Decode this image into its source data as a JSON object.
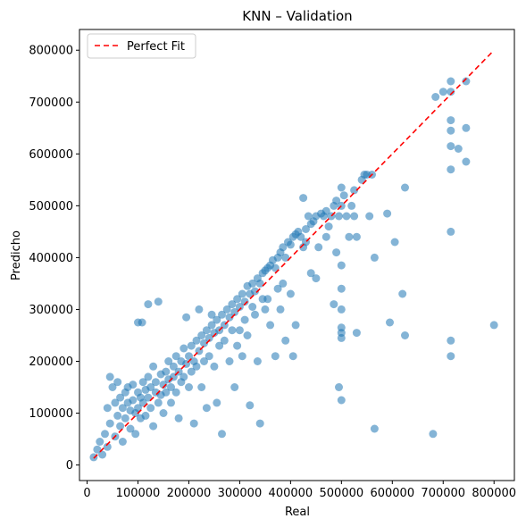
{
  "chart_data": {
    "type": "scatter",
    "title": "KNN – Validation",
    "xlabel": "Real",
    "ylabel": "Predicho",
    "xlim": [
      -15000,
      840000
    ],
    "ylim": [
      -30000,
      840000
    ],
    "x_ticks": [
      0,
      100000,
      200000,
      300000,
      400000,
      500000,
      600000,
      700000,
      800000
    ],
    "y_ticks": [
      0,
      100000,
      200000,
      300000,
      400000,
      500000,
      600000,
      700000,
      800000
    ],
    "grid": false,
    "legend": {
      "location": "top-left",
      "entries": [
        "Perfect Fit"
      ]
    },
    "colors": {
      "points": "#1f77b4",
      "reference_line": "#ff0000"
    },
    "reference_line": {
      "name": "Perfect Fit",
      "x": [
        13000,
        800000
      ],
      "y": [
        13000,
        800000
      ],
      "style": "dashed"
    },
    "series": [
      {
        "marker": "circle",
        "opacity": 0.55,
        "points": [
          [
            13000,
            15000
          ],
          [
            20000,
            30000
          ],
          [
            25000,
            45000
          ],
          [
            30000,
            20000
          ],
          [
            35000,
            60000
          ],
          [
            40000,
            35000
          ],
          [
            40000,
            110000
          ],
          [
            45000,
            80000
          ],
          [
            45000,
            170000
          ],
          [
            50000,
            150000
          ],
          [
            55000,
            55000
          ],
          [
            55000,
            120000
          ],
          [
            60000,
            95000
          ],
          [
            60000,
            160000
          ],
          [
            65000,
            75000
          ],
          [
            65000,
            130000
          ],
          [
            70000,
            110000
          ],
          [
            70000,
            45000
          ],
          [
            75000,
            140000
          ],
          [
            75000,
            90000
          ],
          [
            80000,
            150000
          ],
          [
            80000,
            120000
          ],
          [
            85000,
            70000
          ],
          [
            85000,
            105000
          ],
          [
            90000,
            125000
          ],
          [
            90000,
            155000
          ],
          [
            95000,
            100000
          ],
          [
            95000,
            60000
          ],
          [
            100000,
            140000
          ],
          [
            100000,
            110000
          ],
          [
            100000,
            275000
          ],
          [
            105000,
            130000
          ],
          [
            105000,
            90000
          ],
          [
            108000,
            275000
          ],
          [
            110000,
            160000
          ],
          [
            110000,
            120000
          ],
          [
            115000,
            95000
          ],
          [
            115000,
            145000
          ],
          [
            120000,
            130000
          ],
          [
            120000,
            170000
          ],
          [
            120000,
            310000
          ],
          [
            125000,
            110000
          ],
          [
            125000,
            150000
          ],
          [
            130000,
            190000
          ],
          [
            130000,
            75000
          ],
          [
            135000,
            140000
          ],
          [
            135000,
            160000
          ],
          [
            140000,
            315000
          ],
          [
            140000,
            120000
          ],
          [
            145000,
            175000
          ],
          [
            145000,
            135000
          ],
          [
            150000,
            155000
          ],
          [
            150000,
            100000
          ],
          [
            155000,
            180000
          ],
          [
            155000,
            140000
          ],
          [
            160000,
            165000
          ],
          [
            160000,
            200000
          ],
          [
            165000,
            150000
          ],
          [
            165000,
            120000
          ],
          [
            170000,
            190000
          ],
          [
            170000,
            170000
          ],
          [
            175000,
            210000
          ],
          [
            175000,
            140000
          ],
          [
            180000,
            180000
          ],
          [
            180000,
            90000
          ],
          [
            185000,
            200000
          ],
          [
            185000,
            160000
          ],
          [
            190000,
            225000
          ],
          [
            190000,
            170000
          ],
          [
            195000,
            195000
          ],
          [
            195000,
            285000
          ],
          [
            200000,
            210000
          ],
          [
            200000,
            150000
          ],
          [
            205000,
            230000
          ],
          [
            205000,
            180000
          ],
          [
            210000,
            200000
          ],
          [
            210000,
            80000
          ],
          [
            215000,
            240000
          ],
          [
            215000,
            190000
          ],
          [
            220000,
            220000
          ],
          [
            220000,
            300000
          ],
          [
            225000,
            250000
          ],
          [
            225000,
            150000
          ],
          [
            230000,
            235000
          ],
          [
            230000,
            200000
          ],
          [
            235000,
            260000
          ],
          [
            235000,
            110000
          ],
          [
            240000,
            245000
          ],
          [
            240000,
            210000
          ],
          [
            245000,
            270000
          ],
          [
            245000,
            290000
          ],
          [
            250000,
            255000
          ],
          [
            250000,
            190000
          ],
          [
            255000,
            280000
          ],
          [
            255000,
            120000
          ],
          [
            260000,
            260000
          ],
          [
            260000,
            230000
          ],
          [
            265000,
            290000
          ],
          [
            265000,
            60000
          ],
          [
            270000,
            270000
          ],
          [
            270000,
            240000
          ],
          [
            275000,
            300000
          ],
          [
            280000,
            285000
          ],
          [
            280000,
            200000
          ],
          [
            285000,
            310000
          ],
          [
            285000,
            260000
          ],
          [
            290000,
            295000
          ],
          [
            290000,
            150000
          ],
          [
            295000,
            320000
          ],
          [
            295000,
            230000
          ],
          [
            300000,
            305000
          ],
          [
            300000,
            260000
          ],
          [
            305000,
            330000
          ],
          [
            305000,
            210000
          ],
          [
            310000,
            315000
          ],
          [
            310000,
            280000
          ],
          [
            315000,
            345000
          ],
          [
            315000,
            250000
          ],
          [
            320000,
            330000
          ],
          [
            320000,
            115000
          ],
          [
            325000,
            350000
          ],
          [
            325000,
            305000
          ],
          [
            330000,
            335000
          ],
          [
            330000,
            290000
          ],
          [
            335000,
            360000
          ],
          [
            335000,
            200000
          ],
          [
            340000,
            350000
          ],
          [
            340000,
            80000
          ],
          [
            345000,
            370000
          ],
          [
            345000,
            320000
          ],
          [
            350000,
            375000
          ],
          [
            350000,
            300000
          ],
          [
            355000,
            380000
          ],
          [
            355000,
            320000
          ],
          [
            360000,
            385000
          ],
          [
            360000,
            270000
          ],
          [
            365000,
            395000
          ],
          [
            370000,
            380000
          ],
          [
            370000,
            210000
          ],
          [
            375000,
            400000
          ],
          [
            375000,
            340000
          ],
          [
            380000,
            410000
          ],
          [
            380000,
            300000
          ],
          [
            385000,
            420000
          ],
          [
            385000,
            350000
          ],
          [
            390000,
            400000
          ],
          [
            390000,
            240000
          ],
          [
            395000,
            430000
          ],
          [
            400000,
            425000
          ],
          [
            400000,
            330000
          ],
          [
            405000,
            440000
          ],
          [
            405000,
            210000
          ],
          [
            410000,
            445000
          ],
          [
            410000,
            270000
          ],
          [
            415000,
            450000
          ],
          [
            420000,
            440000
          ],
          [
            425000,
            515000
          ],
          [
            425000,
            420000
          ],
          [
            430000,
            455000
          ],
          [
            430000,
            430000
          ],
          [
            435000,
            480000
          ],
          [
            440000,
            465000
          ],
          [
            440000,
            370000
          ],
          [
            445000,
            470000
          ],
          [
            450000,
            480000
          ],
          [
            450000,
            360000
          ],
          [
            455000,
            420000
          ],
          [
            460000,
            485000
          ],
          [
            465000,
            480000
          ],
          [
            470000,
            490000
          ],
          [
            470000,
            440000
          ],
          [
            475000,
            460000
          ],
          [
            480000,
            480000
          ],
          [
            485000,
            500000
          ],
          [
            485000,
            310000
          ],
          [
            490000,
            510000
          ],
          [
            490000,
            410000
          ],
          [
            495000,
            480000
          ],
          [
            495000,
            150000
          ],
          [
            500000,
            535000
          ],
          [
            500000,
            500000
          ],
          [
            500000,
            385000
          ],
          [
            500000,
            340000
          ],
          [
            500000,
            300000
          ],
          [
            500000,
            265000
          ],
          [
            500000,
            255000
          ],
          [
            500000,
            245000
          ],
          [
            500000,
            125000
          ],
          [
            505000,
            520000
          ],
          [
            510000,
            480000
          ],
          [
            515000,
            440000
          ],
          [
            520000,
            500000
          ],
          [
            525000,
            530000
          ],
          [
            525000,
            480000
          ],
          [
            530000,
            440000
          ],
          [
            530000,
            255000
          ],
          [
            540000,
            550000
          ],
          [
            545000,
            560000
          ],
          [
            550000,
            560000
          ],
          [
            555000,
            480000
          ],
          [
            560000,
            560000
          ],
          [
            565000,
            400000
          ],
          [
            565000,
            70000
          ],
          [
            590000,
            485000
          ],
          [
            595000,
            275000
          ],
          [
            605000,
            430000
          ],
          [
            620000,
            330000
          ],
          [
            625000,
            535000
          ],
          [
            625000,
            250000
          ],
          [
            680000,
            60000
          ],
          [
            685000,
            710000
          ],
          [
            700000,
            720000
          ],
          [
            715000,
            740000
          ],
          [
            715000,
            720000
          ],
          [
            715000,
            665000
          ],
          [
            715000,
            645000
          ],
          [
            715000,
            615000
          ],
          [
            715000,
            570000
          ],
          [
            715000,
            450000
          ],
          [
            715000,
            240000
          ],
          [
            715000,
            210000
          ],
          [
            730000,
            610000
          ],
          [
            745000,
            740000
          ],
          [
            745000,
            650000
          ],
          [
            745000,
            585000
          ],
          [
            800000,
            270000
          ]
        ]
      }
    ]
  }
}
